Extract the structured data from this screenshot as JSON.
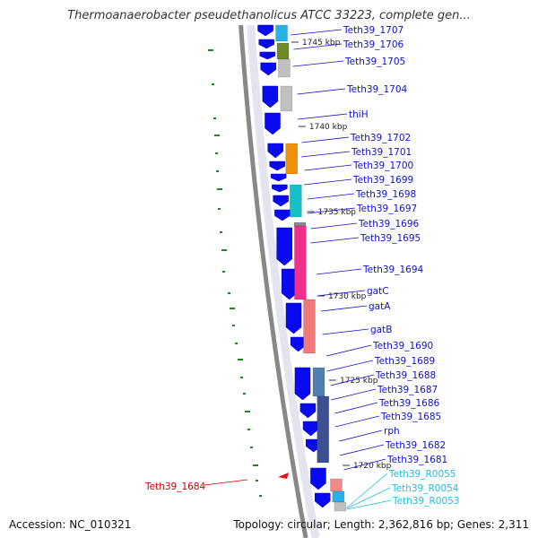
{
  "title": "Thermoanaerobacter pseudethanolicus ATCC 33223, complete gen...",
  "accession": "Accession: NC_010321",
  "summary": "Topology: circular; Length: 2,362,816 bp; Genes: 2,311",
  "colors": {
    "label_gene": "#1010c8",
    "label_trna": "#22bde0",
    "label_highlight": "#cc0000",
    "gene_forward": "#0a0af0",
    "backbone": "#888888",
    "gc_tick": "#1a8a1a"
  },
  "scale_labels": [
    "1745 kbp",
    "1740 kbp",
    "1735 kbp",
    "1730 kbp",
    "1725 kbp",
    "1720 kbp"
  ],
  "gene_labels": [
    "Teth39_1707",
    "Teth39_1706",
    "Teth39_1705",
    "Teth39_1704",
    "thiH",
    "Teth39_1702",
    "Teth39_1701",
    "Teth39_1700",
    "Teth39_1699",
    "Teth39_1698",
    "Teth39_1697",
    "Teth39_1696",
    "Teth39_1695",
    "Teth39_1694",
    "gatC",
    "gatA",
    "gatB",
    "Teth39_1690",
    "Teth39_1689",
    "Teth39_1688",
    "Teth39_1687",
    "Teth39_1686",
    "Teth39_1685",
    "rph",
    "Teth39_1682",
    "Teth39_1681"
  ],
  "trna_labels": [
    "Teth39_R0055",
    "Teth39_R0054",
    "Teth39_R0053"
  ],
  "highlight_label": "Teth39_1684"
}
